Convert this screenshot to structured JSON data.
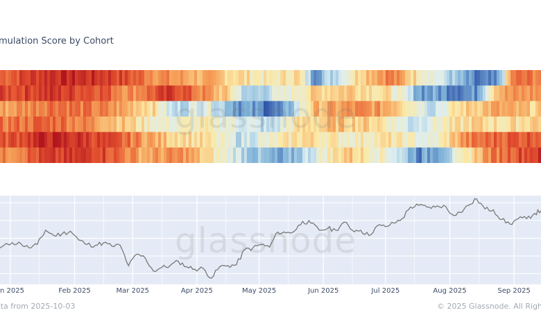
{
  "title": "mulation Score by Cohort",
  "watermark": "glassnode",
  "footer": {
    "left": "ata from 2025-10-03",
    "right": "© 2025 Glassnode. All Righ"
  },
  "colors": {
    "price_line": "#777777",
    "price_bg": "#e5ebf6",
    "grid": "#ffffff"
  },
  "chart_data": [
    {
      "type": "heatmap",
      "title": "mulation Score by Cohort",
      "rows": 6,
      "color_scale": [
        "#2b4fa6",
        "#7fb2d8",
        "#dceef2",
        "#fbe9a6",
        "#f6a25a",
        "#e3502f",
        "#b3151f"
      ],
      "value_range": [
        0,
        1
      ],
      "start_date": "2024-12-27",
      "end_date": "2025-09-14",
      "segments": [
        [
          [
            0,
            0.8
          ],
          [
            10,
            0.95
          ],
          [
            20,
            0.9
          ],
          [
            30,
            0.7
          ],
          [
            40,
            0.6
          ],
          [
            50,
            0.45
          ],
          [
            55,
            0.55
          ],
          [
            58,
            0.15
          ],
          [
            62,
            0.3
          ],
          [
            67,
            0.6
          ],
          [
            72,
            0.75
          ],
          [
            80,
            0.4
          ],
          [
            88,
            0.05
          ],
          [
            92,
            0.05
          ],
          [
            95,
            0.75
          ],
          [
            100,
            0.75
          ]
        ],
        [
          [
            0,
            0.85
          ],
          [
            8,
            0.9
          ],
          [
            18,
            0.85
          ],
          [
            24,
            0.7
          ],
          [
            32,
            0.9
          ],
          [
            42,
            0.55
          ],
          [
            46,
            0.2
          ],
          [
            53,
            0.4
          ],
          [
            58,
            0.55
          ],
          [
            65,
            0.6
          ],
          [
            72,
            0.5
          ],
          [
            78,
            0.15
          ],
          [
            88,
            0.1
          ],
          [
            92,
            0.65
          ],
          [
            100,
            0.7
          ]
        ],
        [
          [
            0,
            0.65
          ],
          [
            10,
            0.8
          ],
          [
            20,
            0.7
          ],
          [
            28,
            0.55
          ],
          [
            32,
            0.25
          ],
          [
            38,
            0.4
          ],
          [
            44,
            0.15
          ],
          [
            52,
            0.05
          ],
          [
            58,
            0.6
          ],
          [
            66,
            0.7
          ],
          [
            73,
            0.65
          ],
          [
            80,
            0.3
          ],
          [
            86,
            0.55
          ],
          [
            92,
            0.65
          ],
          [
            100,
            0.55
          ]
        ],
        [
          [
            0,
            0.75
          ],
          [
            10,
            0.8
          ],
          [
            20,
            0.65
          ],
          [
            30,
            0.4
          ],
          [
            38,
            0.45
          ],
          [
            45,
            0.35
          ],
          [
            50,
            0.25
          ],
          [
            55,
            0.5
          ],
          [
            62,
            0.6
          ],
          [
            70,
            0.55
          ],
          [
            76,
            0.3
          ],
          [
            82,
            0.45
          ],
          [
            88,
            0.55
          ],
          [
            94,
            0.5
          ],
          [
            100,
            0.6
          ]
        ],
        [
          [
            0,
            0.8
          ],
          [
            8,
            0.95
          ],
          [
            16,
            0.9
          ],
          [
            24,
            0.75
          ],
          [
            30,
            0.6
          ],
          [
            38,
            0.5
          ],
          [
            44,
            0.3
          ],
          [
            50,
            0.4
          ],
          [
            56,
            0.55
          ],
          [
            64,
            0.45
          ],
          [
            72,
            0.5
          ],
          [
            80,
            0.35
          ],
          [
            86,
            0.7
          ],
          [
            92,
            0.8
          ],
          [
            100,
            0.85
          ]
        ],
        [
          [
            0,
            0.7
          ],
          [
            8,
            0.85
          ],
          [
            18,
            0.9
          ],
          [
            26,
            0.65
          ],
          [
            34,
            0.7
          ],
          [
            40,
            0.45
          ],
          [
            46,
            0.25
          ],
          [
            52,
            0.1
          ],
          [
            58,
            0.35
          ],
          [
            64,
            0.6
          ],
          [
            72,
            0.4
          ],
          [
            78,
            0.1
          ],
          [
            84,
            0.3
          ],
          [
            90,
            0.7
          ],
          [
            96,
            0.85
          ],
          [
            100,
            0.9
          ]
        ]
      ]
    },
    {
      "type": "line",
      "x_ticks": [
        "n 2025",
        "Feb 2025",
        "Mar 2025",
        "Apr 2025",
        "May 2025",
        "Jun 2025",
        "Jul 2025",
        "Aug 2025",
        "Sep 2025"
      ],
      "y_range": [
        74000,
        124000
      ],
      "series": [
        {
          "x": [
            "2024-12-27",
            "2025-01-02",
            "2025-01-06",
            "2025-01-10",
            "2025-01-14",
            "2025-01-18",
            "2025-01-22",
            "2025-01-26",
            "2025-01-30",
            "2025-02-03",
            "2025-02-07",
            "2025-02-11",
            "2025-02-15",
            "2025-02-19",
            "2025-02-23",
            "2025-02-27",
            "2025-03-03",
            "2025-03-07",
            "2025-03-11",
            "2025-03-15",
            "2025-03-19",
            "2025-03-23",
            "2025-03-27",
            "2025-03-31",
            "2025-04-04",
            "2025-04-08",
            "2025-04-12",
            "2025-04-16",
            "2025-04-20",
            "2025-04-24",
            "2025-04-28",
            "2025-05-02",
            "2025-05-06",
            "2025-05-10",
            "2025-05-14",
            "2025-05-18",
            "2025-05-22",
            "2025-05-26",
            "2025-05-30",
            "2025-06-03",
            "2025-06-07",
            "2025-06-11",
            "2025-06-15",
            "2025-06-19",
            "2025-06-23",
            "2025-06-27",
            "2025-07-01",
            "2025-07-05",
            "2025-07-09",
            "2025-07-13",
            "2025-07-17",
            "2025-07-21",
            "2025-07-25",
            "2025-07-29",
            "2025-08-02",
            "2025-08-06",
            "2025-08-10",
            "2025-08-14",
            "2025-08-18",
            "2025-08-22",
            "2025-08-26",
            "2025-08-30",
            "2025-09-03",
            "2025-09-07",
            "2025-09-11",
            "2025-09-14"
          ],
          "values": [
            94500,
            97500,
            97000,
            94500,
            96500,
            104500,
            101500,
            102500,
            104000,
            99000,
            96500,
            96000,
            97500,
            95500,
            96000,
            84500,
            91000,
            89000,
            81500,
            83500,
            84500,
            87000,
            84000,
            82500,
            83000,
            77500,
            84000,
            84500,
            85000,
            93500,
            94500,
            96500,
            95000,
            103500,
            103000,
            104000,
            109500,
            108500,
            104500,
            105500,
            104500,
            109000,
            104500,
            104500,
            101500,
            107000,
            106500,
            108500,
            111000,
            117500,
            118500,
            117500,
            117500,
            118500,
            113500,
            114500,
            118500,
            122000,
            116500,
            116000,
            110500,
            108000,
            111000,
            111000,
            114000,
            115500
          ]
        }
      ]
    }
  ]
}
